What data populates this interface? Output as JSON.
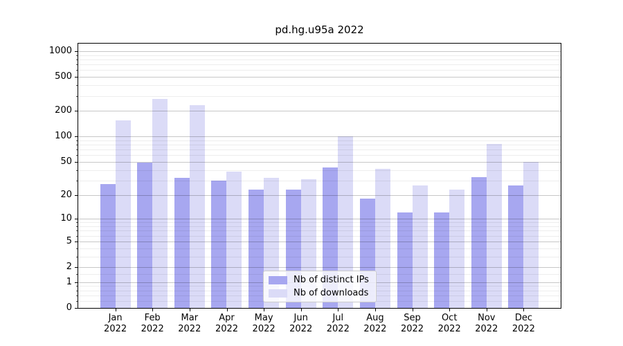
{
  "chart_data": {
    "type": "bar",
    "title": "pd.hg.u95a 2022",
    "categories": [
      "Jan",
      "Feb",
      "Mar",
      "Apr",
      "May",
      "Jun",
      "Jul",
      "Aug",
      "Sep",
      "Oct",
      "Nov",
      "Dec"
    ],
    "x_tick_line2": "2022",
    "series": [
      {
        "name": "Nb of distinct IPs",
        "color": "#a7a7f0",
        "values": [
          27,
          49,
          32,
          30,
          23,
          23,
          43,
          18,
          12,
          12,
          33,
          26
        ]
      },
      {
        "name": "Nb of downloads",
        "color": "#dbdbf7",
        "values": [
          154,
          274,
          234,
          38,
          32,
          31,
          101,
          41,
          26,
          23,
          81,
          50
        ]
      }
    ],
    "yscale": "log10(y+1)",
    "y_major_ticks": [
      0,
      1,
      2,
      5,
      10,
      20,
      50,
      100,
      200,
      500,
      1000
    ],
    "y_minor_ticks": [
      0.2,
      0.4,
      0.6,
      0.8,
      1.5,
      3,
      4,
      6,
      7,
      8,
      9,
      30,
      40,
      60,
      70,
      80,
      90,
      300,
      400,
      600,
      700,
      800,
      900
    ],
    "ylim": [
      0,
      1228
    ],
    "grid": "on",
    "legend_position": "lower center"
  }
}
